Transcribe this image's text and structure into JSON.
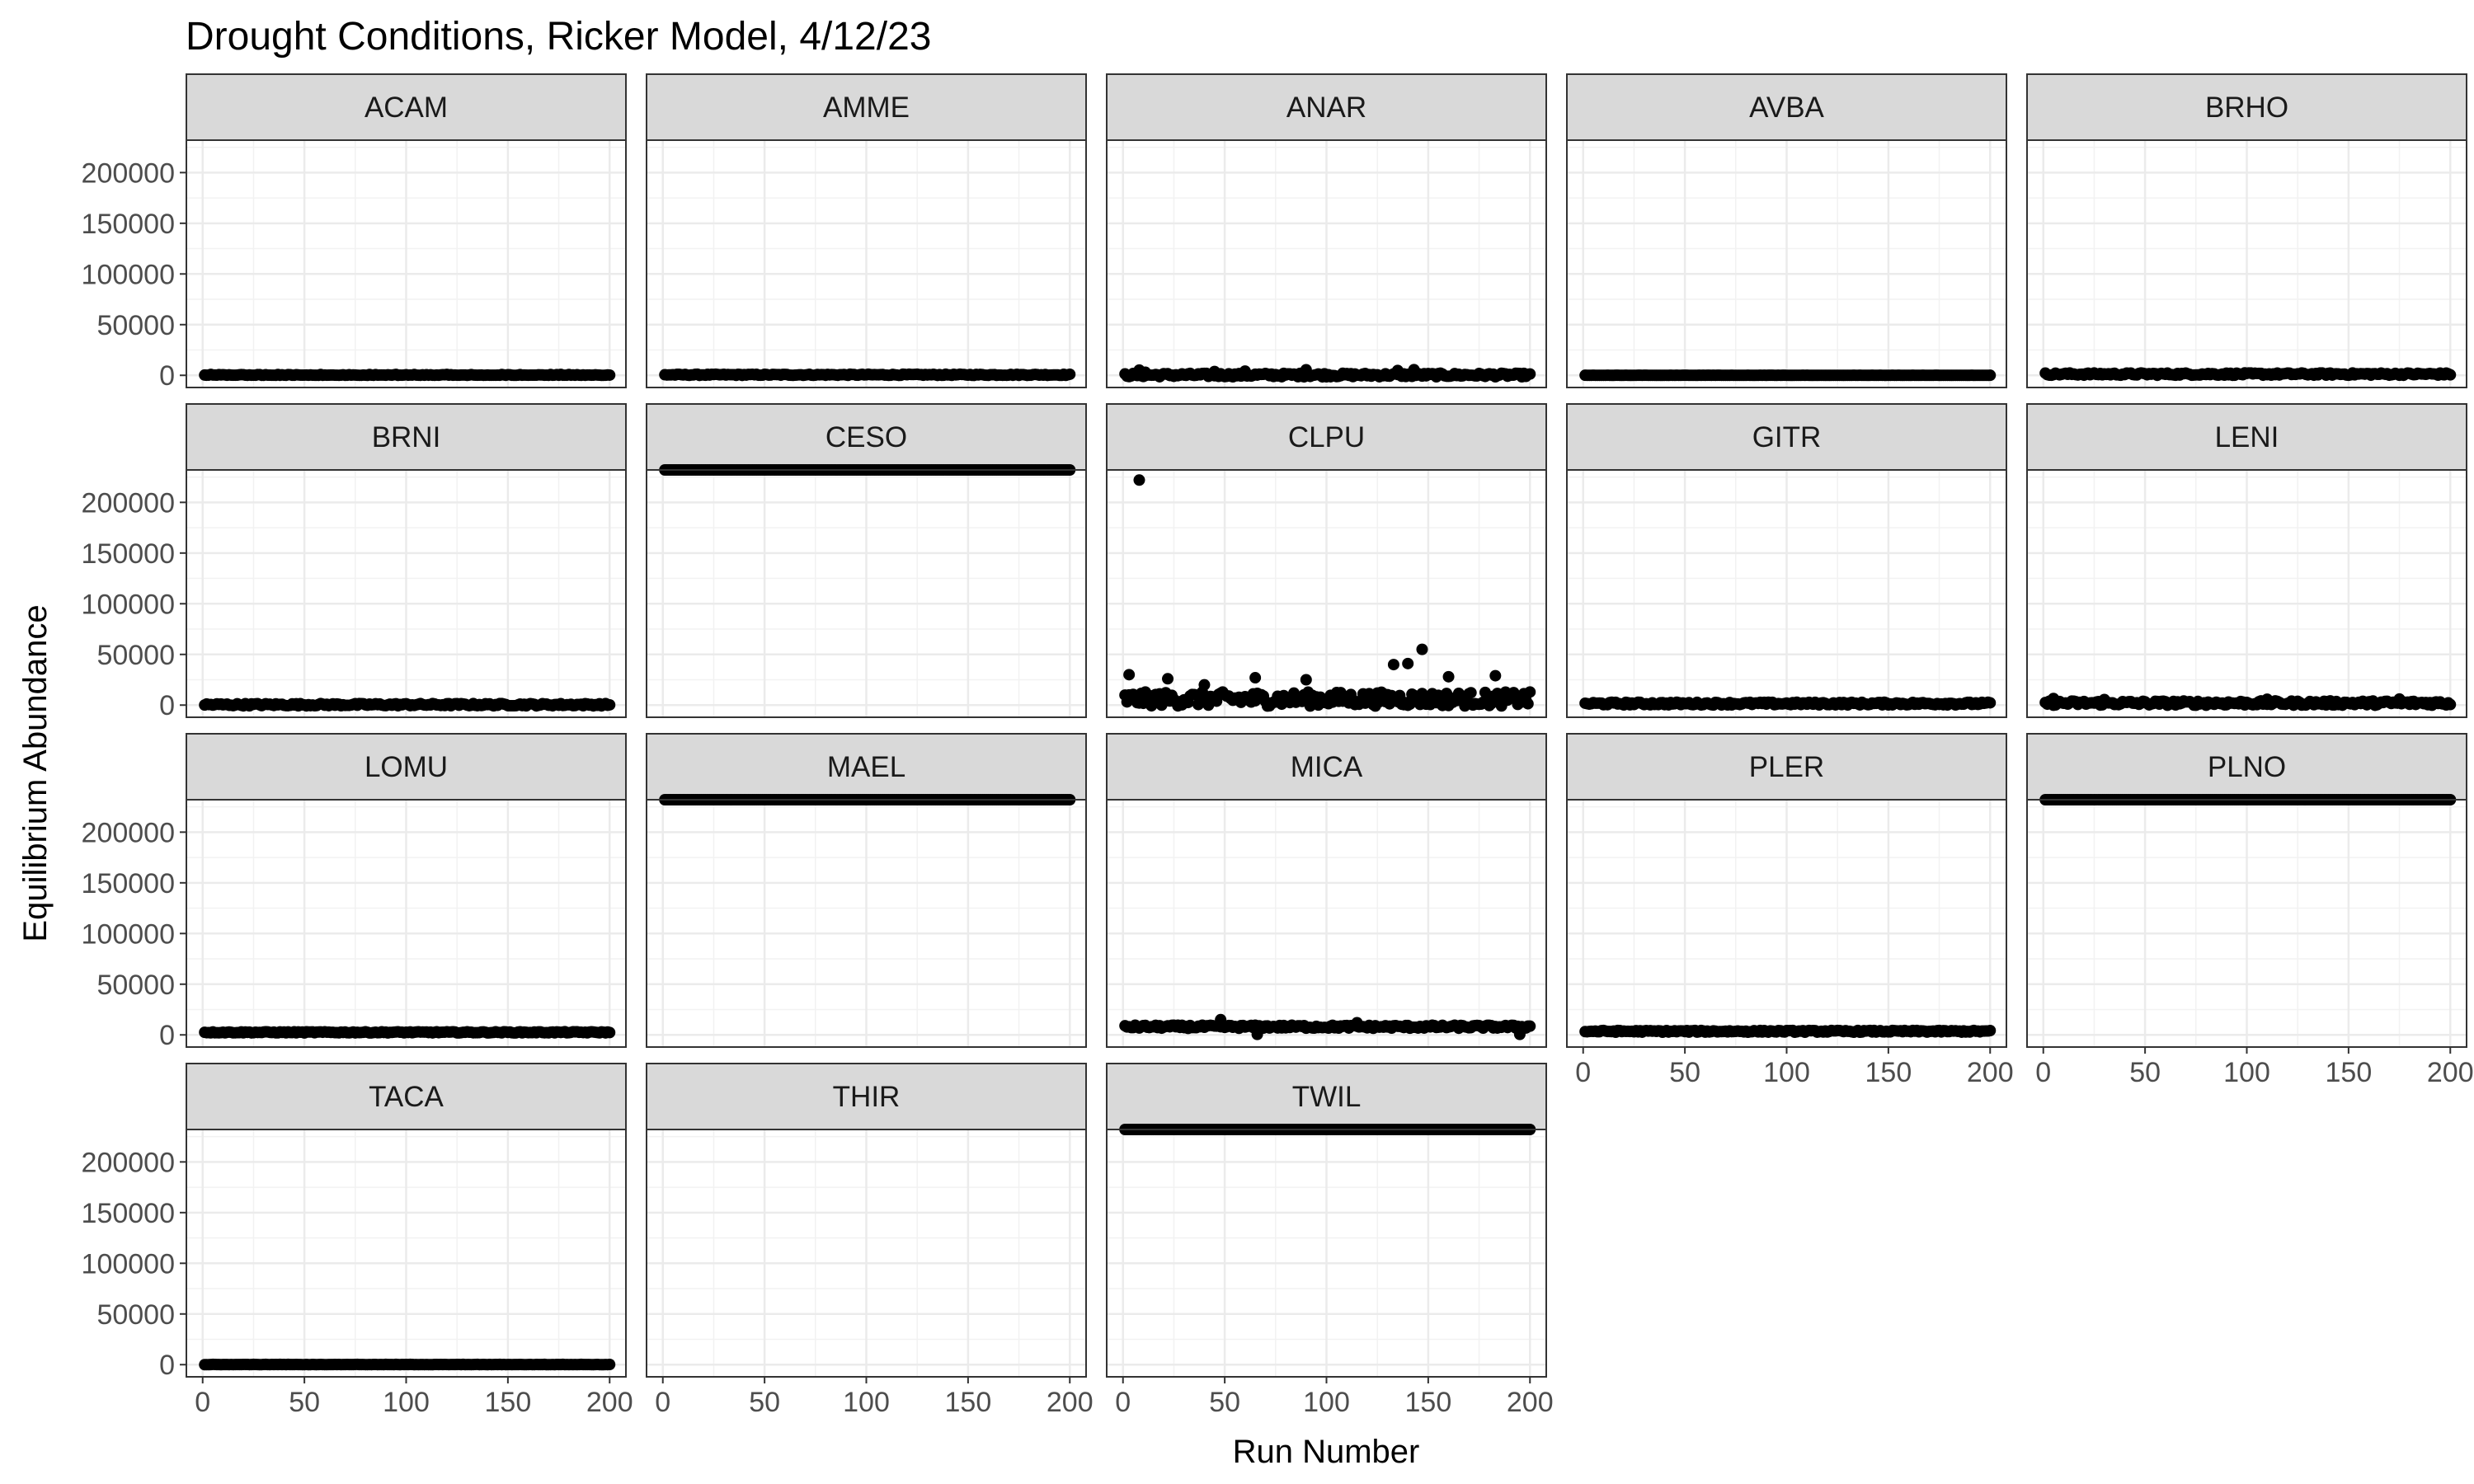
{
  "chart_data": {
    "type": "scatter",
    "title": "Drought Conditions, Ricker Model, 4/12/23",
    "xlabel": "Run Number",
    "ylabel": "Equilibrium Abundance",
    "xlim": [
      -8,
      208
    ],
    "ylim": [
      -12000,
      232000
    ],
    "x_ticks": [
      0,
      50,
      100,
      150,
      200
    ],
    "x_tick_labels": [
      "0",
      "50",
      "100",
      "150",
      "200"
    ],
    "y_ticks": [
      0,
      50000,
      100000,
      150000,
      200000
    ],
    "y_tick_labels": [
      "0",
      "50000",
      "100000",
      "150000",
      "200000"
    ],
    "grid": true,
    "legend": "none",
    "layout": {
      "columns": 5,
      "rows": 4
    },
    "run_numbers": "1-200",
    "panels": [
      {
        "name": "ACAM",
        "level": 0,
        "spread": 900,
        "outliers": []
      },
      {
        "name": "AMME",
        "level": 500,
        "spread": 600,
        "outliers": []
      },
      {
        "name": "ANAR",
        "level": 300,
        "spread": 1800,
        "outliers": [
          [
            8,
            5200
          ],
          [
            11,
            3000
          ],
          [
            45,
            3800
          ],
          [
            60,
            4200
          ],
          [
            90,
            5500
          ],
          [
            135,
            4800
          ],
          [
            143,
            5600
          ]
        ]
      },
      {
        "name": "AVBA",
        "level": 0,
        "spread": 100,
        "outliers": []
      },
      {
        "name": "BRHO",
        "level": 1200,
        "spread": 1200,
        "outliers": []
      },
      {
        "name": "BRNI",
        "level": 400,
        "spread": 1200,
        "outliers": []
      },
      {
        "name": "CESO",
        "level": 232000,
        "spread": 0,
        "outliers": []
      },
      {
        "name": "CLPU",
        "level": 6000,
        "spread": 7000,
        "outliers": [
          [
            3,
            30000
          ],
          [
            8,
            222000
          ],
          [
            22,
            26000
          ],
          [
            40,
            20000
          ],
          [
            65,
            27000
          ],
          [
            90,
            25000
          ],
          [
            133,
            40000
          ],
          [
            140,
            41000
          ],
          [
            147,
            55000
          ],
          [
            160,
            28000
          ],
          [
            183,
            29000
          ]
        ]
      },
      {
        "name": "GITR",
        "level": 1500,
        "spread": 1400,
        "outliers": []
      },
      {
        "name": "LENI",
        "level": 2000,
        "spread": 2200,
        "outliers": [
          [
            5,
            6500
          ],
          [
            30,
            5500
          ],
          [
            110,
            5800
          ],
          [
            175,
            6000
          ]
        ]
      },
      {
        "name": "LOMU",
        "level": 2500,
        "spread": 600,
        "outliers": []
      },
      {
        "name": "MAEL",
        "level": 232000,
        "spread": 0,
        "outliers": []
      },
      {
        "name": "MICA",
        "level": 8000,
        "spread": 1600,
        "outliers": [
          [
            48,
            15000
          ],
          [
            66,
            500
          ],
          [
            115,
            12000
          ],
          [
            195,
            500
          ]
        ]
      },
      {
        "name": "PLER",
        "level": 3500,
        "spread": 900,
        "outliers": []
      },
      {
        "name": "PLNO",
        "level": 232000,
        "spread": 0,
        "outliers": []
      },
      {
        "name": "TACA",
        "level": 0,
        "spread": 300,
        "outliers": []
      },
      {
        "name": "THIR",
        "level": null,
        "spread": 0,
        "outliers": []
      },
      {
        "name": "TWIL",
        "level": 232000,
        "spread": 0,
        "outliers": []
      }
    ]
  }
}
